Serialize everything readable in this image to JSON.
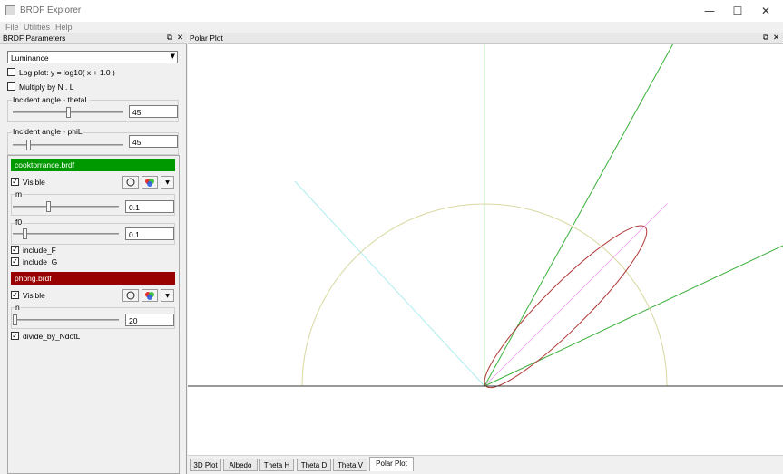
{
  "window": {
    "title": "BRDF Explorer",
    "minimize": "—",
    "maximize": "☐",
    "close": "✕"
  },
  "menu": [
    "File",
    "Utilities",
    "Help"
  ],
  "left_dock": {
    "title": "BRDF Parameters",
    "float_icon": "⧉",
    "close_icon": "✕",
    "mode_select": "Luminance",
    "log_plot_label": "Log plot:  y = log10( x + 1.0 )",
    "log_plot_checked": false,
    "multiply_label": "Multiply by N . L",
    "multiply_checked": false,
    "theta_group": {
      "label": "Incident angle - thetaL",
      "value": "45",
      "slider_fraction": 0.5
    },
    "phi_group": {
      "label": "Incident angle - phiL",
      "value": "45",
      "slider_fraction": 0.125
    },
    "brdfs": [
      {
        "name": "cooktorrance.brdf",
        "color": "#009900",
        "visible_label": "Visible",
        "visible_checked": true,
        "params": [
          {
            "label": "m",
            "value": "0.1",
            "slider_fraction": 0.33
          },
          {
            "label": "f0",
            "value": "0.1",
            "slider_fraction": 0.1
          }
        ],
        "checks": [
          {
            "label": "include_F",
            "checked": true
          },
          {
            "label": "include_G",
            "checked": true
          }
        ]
      },
      {
        "name": "phong.brdf",
        "color": "#990000",
        "visible_label": "Visible",
        "visible_checked": true,
        "params": [
          {
            "label": "n",
            "value": "20",
            "slider_fraction": 0.0
          }
        ],
        "checks": [
          {
            "label": "divide_by_NdotL",
            "checked": true
          }
        ]
      }
    ],
    "check_mark": "✓"
  },
  "polar_dock": {
    "title": "Polar Plot",
    "float_icon": "⧉",
    "close_icon": "✕"
  },
  "tabs": [
    {
      "label": "3D Plot",
      "active": false
    },
    {
      "label": "Albedo",
      "active": false
    },
    {
      "label": "Theta H",
      "active": false
    },
    {
      "label": "Theta D",
      "active": false
    },
    {
      "label": "Theta V",
      "active": false
    },
    {
      "label": "Polar Plot",
      "active": true
    }
  ],
  "plot": {
    "incident_deg": 45,
    "colors": {
      "normal": "#b8ecb8",
      "incident": "#aeeeee",
      "reflect": "#f2b0f2",
      "reference_circle": "#d8d8a0",
      "cook_lobe": "#3ab03a",
      "phong_lobe": "#b03a3a",
      "baseline": "#333333"
    }
  }
}
